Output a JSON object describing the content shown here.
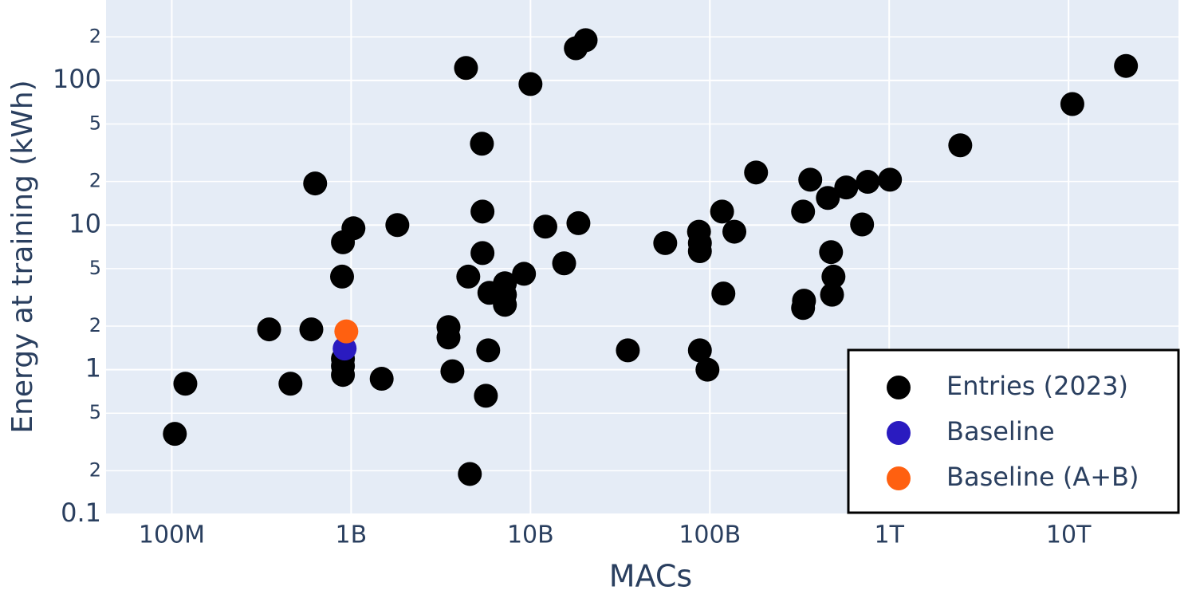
{
  "chart_data": {
    "type": "scatter",
    "xlabel": "MACs",
    "ylabel": "Energy at training (kWh)",
    "log_x": true,
    "log_y": true,
    "grid": true,
    "legend": "bottom-right",
    "xlim": [
      43000000,
      41000000000000
    ],
    "ylim": [
      0.1,
      360
    ],
    "xticks": [
      {
        "value": 100000000,
        "label": "100M"
      },
      {
        "value": 1000000000,
        "label": "1B"
      },
      {
        "value": 10000000000,
        "label": "10B"
      },
      {
        "value": 100000000000,
        "label": "100B"
      },
      {
        "value": 1000000000000,
        "label": "1T"
      },
      {
        "value": 10000000000000,
        "label": "10T"
      }
    ],
    "yticks": [
      0.1,
      {
        "value": 0.2,
        "label": "2"
      },
      {
        "value": 0.5,
        "label": "5"
      },
      1,
      {
        "value": 2,
        "label": "2"
      },
      {
        "value": 5,
        "label": "5"
      },
      10,
      {
        "value": 20,
        "label": "2"
      },
      {
        "value": 50,
        "label": "5"
      },
      100,
      {
        "value": 200,
        "label": "2"
      }
    ],
    "series": [
      {
        "name": "Entries (2023)",
        "color": "#000000",
        "x": [
          104000000,
          119000000,
          349000000,
          459000000,
          600000000,
          630000000,
          890000000,
          900000000,
          900000000,
          900000000,
          900000000,
          1030000000,
          1480000000,
          1810000000,
          3490000000,
          3490000000,
          3670000000,
          4500000000,
          4370000000,
          4590000000,
          5360000000,
          5400000000,
          5400000000,
          5640000000,
          5810000000,
          5900000000,
          7200000000,
          7200000000,
          7200000000,
          9200000000,
          10000000000,
          12100000000,
          15400000000,
          17900000000,
          20300000000,
          18500000000,
          34900000000,
          56400000000,
          87000000000,
          88000000000,
          88000000000,
          88000000000,
          97000000000,
          117000000000,
          119000000000,
          137000000000,
          181000000000,
          331000000000,
          335000000000,
          331000000000,
          363000000000,
          455000000000,
          474000000000,
          489000000000,
          480000000000,
          576000000000,
          706000000000,
          759000000000,
          1010000000000,
          2490000000000,
          10500000000000,
          20900000000000
        ],
        "values": [
          0.36,
          0.8,
          1.9,
          0.8,
          1.9,
          19.4,
          4.4,
          7.6,
          1.19,
          1.06,
          0.92,
          9.5,
          0.865,
          10,
          1.97,
          1.67,
          0.975,
          4.4,
          122,
          0.19,
          36.5,
          12.4,
          6.4,
          0.66,
          1.36,
          3.4,
          3.96,
          3.3,
          2.81,
          4.6,
          94.4,
          9.75,
          5.44,
          167,
          190,
          10.3,
          1.36,
          7.5,
          9.0,
          7.5,
          6.6,
          1.36,
          1.0,
          12.4,
          3.36,
          9.0,
          23.1,
          12.4,
          3.0,
          2.67,
          20.6,
          15.4,
          6.5,
          4.4,
          3.3,
          18.2,
          10.1,
          19.9,
          20.6,
          35.6,
          68.7,
          126
        ]
      },
      {
        "name": "Baseline",
        "color": "#2a1bc0",
        "x": [
          920000000
        ],
        "values": [
          1.4
        ]
      },
      {
        "name": "Baseline (A+B)",
        "color": "#ff6010",
        "x": [
          940000000
        ],
        "values": [
          1.84
        ]
      }
    ]
  }
}
